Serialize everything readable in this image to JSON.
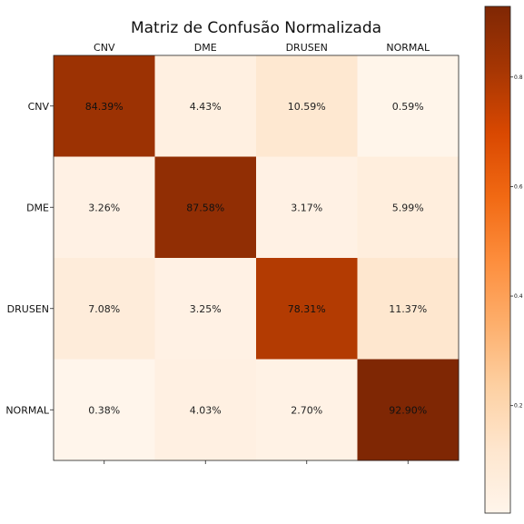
{
  "chart_data": {
    "type": "heatmap",
    "title": "Matriz de Confusão Normalizada",
    "xlabel": "",
    "ylabel": "",
    "x_categories": [
      "CNV",
      "DME",
      "DRUSEN",
      "NORMAL"
    ],
    "y_categories": [
      "CNV",
      "DME",
      "DRUSEN",
      "NORMAL"
    ],
    "values": [
      [
        0.8439,
        0.0443,
        0.1059,
        0.0059
      ],
      [
        0.0326,
        0.8758,
        0.0317,
        0.0599
      ],
      [
        0.0708,
        0.0325,
        0.7831,
        0.1137
      ],
      [
        0.0038,
        0.0403,
        0.027,
        0.929
      ]
    ],
    "cell_labels": [
      [
        "84.39%",
        "4.43%",
        "10.59%",
        "0.59%"
      ],
      [
        "3.26%",
        "87.58%",
        "3.17%",
        "5.99%"
      ],
      [
        "7.08%",
        "3.25%",
        "78.31%",
        "11.37%"
      ],
      [
        "0.38%",
        "4.03%",
        "2.70%",
        "92.90%"
      ]
    ],
    "colormap": "Oranges",
    "colorbar": {
      "vmin": 0.0038,
      "vmax": 0.929,
      "ticks": [
        0.2,
        0.4,
        0.6,
        0.8
      ],
      "tick_labels": [
        "0.2",
        "0.4",
        "0.6",
        "0.8"
      ]
    },
    "x_tick_position": "top",
    "grid": false,
    "legend": "none"
  }
}
